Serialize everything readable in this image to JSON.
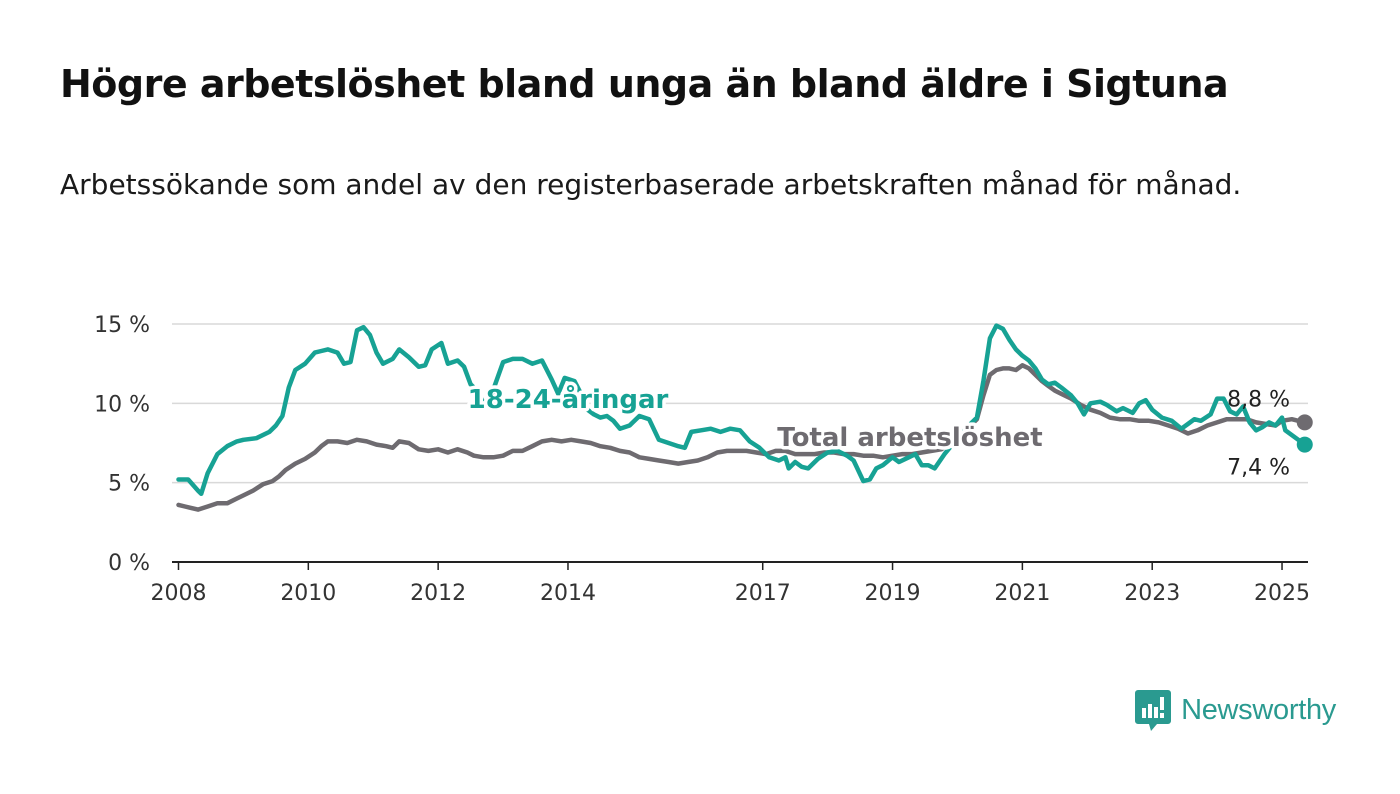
{
  "title": "Högre arbetslöshet bland unga än bland äldre i Sigtuna",
  "subtitle": "Arbetssökande som andel av den registerbaserade arbetskraften månad för månad.",
  "brand": {
    "name": "Newsworthy",
    "icon": "newsworthy-logo-icon",
    "color": "#2a9a90"
  },
  "chart_data": {
    "type": "line",
    "title": "Högre arbetslöshet bland unga än bland äldre i Sigtuna",
    "subtitle": "Arbetssökande som andel av den registerbaserade arbetskraften månad för månad.",
    "xlabel": "",
    "ylabel": "",
    "xlim": [
      2007.9,
      2025.4
    ],
    "ylim": [
      0,
      15
    ],
    "x_ticks": [
      2008,
      2010,
      2012,
      2014,
      2017,
      2019,
      2021,
      2023,
      2025
    ],
    "x_tick_labels": [
      "2008",
      "2010",
      "2012",
      "2014",
      "2017",
      "2019",
      "2021",
      "2023",
      "2025"
    ],
    "y_ticks": [
      0,
      5,
      10,
      15
    ],
    "y_tick_labels": [
      "0 %",
      "5 %",
      "10 %",
      "15 %"
    ],
    "grid": true,
    "legend": "inline labels",
    "series": [
      {
        "name": "18-24-åringar",
        "color": "#17a294",
        "end_label": "7,4 %",
        "points": [
          [
            2008.0,
            5.2
          ],
          [
            2008.15,
            5.2
          ],
          [
            2008.3,
            4.5
          ],
          [
            2008.35,
            4.3
          ],
          [
            2008.45,
            5.6
          ],
          [
            2008.6,
            6.8
          ],
          [
            2008.75,
            7.3
          ],
          [
            2008.9,
            7.6
          ],
          [
            2009.0,
            7.7
          ],
          [
            2009.2,
            7.8
          ],
          [
            2009.4,
            8.2
          ],
          [
            2009.5,
            8.6
          ],
          [
            2009.6,
            9.2
          ],
          [
            2009.7,
            11.0
          ],
          [
            2009.8,
            12.1
          ],
          [
            2009.95,
            12.5
          ],
          [
            2010.1,
            13.2
          ],
          [
            2010.2,
            13.3
          ],
          [
            2010.3,
            13.4
          ],
          [
            2010.45,
            13.2
          ],
          [
            2010.55,
            12.5
          ],
          [
            2010.65,
            12.6
          ],
          [
            2010.75,
            14.6
          ],
          [
            2010.85,
            14.8
          ],
          [
            2010.95,
            14.3
          ],
          [
            2011.05,
            13.2
          ],
          [
            2011.15,
            12.5
          ],
          [
            2011.3,
            12.8
          ],
          [
            2011.4,
            13.4
          ],
          [
            2011.55,
            12.9
          ],
          [
            2011.7,
            12.3
          ],
          [
            2011.8,
            12.4
          ],
          [
            2011.9,
            13.4
          ],
          [
            2012.05,
            13.8
          ],
          [
            2012.15,
            12.5
          ],
          [
            2012.3,
            12.7
          ],
          [
            2012.4,
            12.3
          ],
          [
            2012.5,
            11.2
          ],
          [
            2012.6,
            10.8
          ],
          [
            2012.7,
            10.0
          ],
          [
            2012.8,
            10.3
          ],
          [
            2013.0,
            12.6
          ],
          [
            2013.15,
            12.8
          ],
          [
            2013.3,
            12.8
          ],
          [
            2013.45,
            12.5
          ],
          [
            2013.6,
            12.7
          ],
          [
            2013.75,
            11.5
          ],
          [
            2013.85,
            10.6
          ],
          [
            2013.95,
            11.6
          ],
          [
            2014.1,
            11.4
          ],
          [
            2014.2,
            10.6
          ],
          [
            2014.3,
            9.6
          ],
          [
            2014.4,
            9.3
          ],
          [
            2014.5,
            9.1
          ],
          [
            2014.6,
            9.2
          ],
          [
            2014.7,
            8.9
          ],
          [
            2014.8,
            8.4
          ],
          [
            2014.95,
            8.6
          ],
          [
            2015.1,
            9.2
          ],
          [
            2015.25,
            9.0
          ],
          [
            2015.4,
            7.7
          ],
          [
            2015.55,
            7.5
          ],
          [
            2015.7,
            7.3
          ],
          [
            2015.8,
            7.2
          ],
          [
            2015.9,
            8.2
          ],
          [
            2016.05,
            8.3
          ],
          [
            2016.2,
            8.4
          ],
          [
            2016.35,
            8.2
          ],
          [
            2016.5,
            8.4
          ],
          [
            2016.65,
            8.3
          ],
          [
            2016.8,
            7.6
          ],
          [
            2016.95,
            7.2
          ],
          [
            2017.1,
            6.6
          ],
          [
            2017.25,
            6.4
          ],
          [
            2017.35,
            6.6
          ],
          [
            2017.4,
            5.9
          ],
          [
            2017.5,
            6.3
          ],
          [
            2017.6,
            6.0
          ],
          [
            2017.7,
            5.9
          ],
          [
            2017.85,
            6.5
          ],
          [
            2018.0,
            6.9
          ],
          [
            2018.15,
            7.0
          ],
          [
            2018.3,
            6.7
          ],
          [
            2018.4,
            6.4
          ],
          [
            2018.55,
            5.1
          ],
          [
            2018.65,
            5.2
          ],
          [
            2018.75,
            5.9
          ],
          [
            2018.85,
            6.1
          ],
          [
            2019.0,
            6.6
          ],
          [
            2019.1,
            6.3
          ],
          [
            2019.25,
            6.6
          ],
          [
            2019.35,
            6.8
          ],
          [
            2019.45,
            6.1
          ],
          [
            2019.55,
            6.1
          ],
          [
            2019.65,
            5.9
          ],
          [
            2019.8,
            6.8
          ],
          [
            2019.9,
            7.3
          ],
          [
            2020.0,
            7.9
          ],
          [
            2020.15,
            8.5
          ],
          [
            2020.3,
            9.1
          ],
          [
            2020.4,
            11.4
          ],
          [
            2020.5,
            14.1
          ],
          [
            2020.6,
            14.9
          ],
          [
            2020.7,
            14.7
          ],
          [
            2020.8,
            14.0
          ],
          [
            2020.9,
            13.4
          ],
          [
            2021.0,
            13.0
          ],
          [
            2021.1,
            12.7
          ],
          [
            2021.2,
            12.2
          ],
          [
            2021.3,
            11.5
          ],
          [
            2021.4,
            11.2
          ],
          [
            2021.5,
            11.3
          ],
          [
            2021.6,
            11.0
          ],
          [
            2021.75,
            10.5
          ],
          [
            2021.85,
            10.0
          ],
          [
            2021.95,
            9.3
          ],
          [
            2022.05,
            10.0
          ],
          [
            2022.2,
            10.1
          ],
          [
            2022.3,
            9.9
          ],
          [
            2022.45,
            9.5
          ],
          [
            2022.55,
            9.7
          ],
          [
            2022.7,
            9.4
          ],
          [
            2022.8,
            10.0
          ],
          [
            2022.9,
            10.2
          ],
          [
            2023.0,
            9.6
          ],
          [
            2023.15,
            9.1
          ],
          [
            2023.3,
            8.9
          ],
          [
            2023.45,
            8.4
          ],
          [
            2023.55,
            8.7
          ],
          [
            2023.65,
            9.0
          ],
          [
            2023.75,
            8.9
          ],
          [
            2023.9,
            9.3
          ],
          [
            2024.0,
            10.3
          ],
          [
            2024.1,
            10.3
          ],
          [
            2024.2,
            9.5
          ],
          [
            2024.3,
            9.3
          ],
          [
            2024.4,
            9.8
          ],
          [
            2024.5,
            8.8
          ],
          [
            2024.6,
            8.3
          ],
          [
            2024.7,
            8.5
          ],
          [
            2024.8,
            8.8
          ],
          [
            2024.9,
            8.6
          ],
          [
            2025.0,
            9.1
          ],
          [
            2025.05,
            8.3
          ],
          [
            2025.15,
            8.0
          ],
          [
            2025.25,
            7.7
          ],
          [
            2025.35,
            7.4
          ]
        ]
      },
      {
        "name": "Total arbetslöshet",
        "color": "#6e6b70",
        "end_label": "8,8 %",
        "points": [
          [
            2008.0,
            3.6
          ],
          [
            2008.1,
            3.5
          ],
          [
            2008.2,
            3.4
          ],
          [
            2008.3,
            3.3
          ],
          [
            2008.45,
            3.5
          ],
          [
            2008.6,
            3.7
          ],
          [
            2008.75,
            3.7
          ],
          [
            2008.9,
            4.0
          ],
          [
            2009.0,
            4.2
          ],
          [
            2009.15,
            4.5
          ],
          [
            2009.3,
            4.9
          ],
          [
            2009.45,
            5.1
          ],
          [
            2009.55,
            5.4
          ],
          [
            2009.65,
            5.8
          ],
          [
            2009.8,
            6.2
          ],
          [
            2009.95,
            6.5
          ],
          [
            2010.1,
            6.9
          ],
          [
            2010.2,
            7.3
          ],
          [
            2010.3,
            7.6
          ],
          [
            2010.45,
            7.6
          ],
          [
            2010.6,
            7.5
          ],
          [
            2010.75,
            7.7
          ],
          [
            2010.9,
            7.6
          ],
          [
            2011.05,
            7.4
          ],
          [
            2011.2,
            7.3
          ],
          [
            2011.3,
            7.2
          ],
          [
            2011.4,
            7.6
          ],
          [
            2011.55,
            7.5
          ],
          [
            2011.7,
            7.1
          ],
          [
            2011.85,
            7.0
          ],
          [
            2012.0,
            7.1
          ],
          [
            2012.15,
            6.9
          ],
          [
            2012.3,
            7.1
          ],
          [
            2012.45,
            6.9
          ],
          [
            2012.55,
            6.7
          ],
          [
            2012.7,
            6.6
          ],
          [
            2012.85,
            6.6
          ],
          [
            2013.0,
            6.7
          ],
          [
            2013.15,
            7.0
          ],
          [
            2013.3,
            7.0
          ],
          [
            2013.45,
            7.3
          ],
          [
            2013.6,
            7.6
          ],
          [
            2013.75,
            7.7
          ],
          [
            2013.9,
            7.6
          ],
          [
            2014.05,
            7.7
          ],
          [
            2014.2,
            7.6
          ],
          [
            2014.35,
            7.5
          ],
          [
            2014.5,
            7.3
          ],
          [
            2014.65,
            7.2
          ],
          [
            2014.8,
            7.0
          ],
          [
            2014.95,
            6.9
          ],
          [
            2015.1,
            6.6
          ],
          [
            2015.25,
            6.5
          ],
          [
            2015.4,
            6.4
          ],
          [
            2015.55,
            6.3
          ],
          [
            2015.7,
            6.2
          ],
          [
            2015.85,
            6.3
          ],
          [
            2016.0,
            6.4
          ],
          [
            2016.15,
            6.6
          ],
          [
            2016.3,
            6.9
          ],
          [
            2016.45,
            7.0
          ],
          [
            2016.6,
            7.0
          ],
          [
            2016.75,
            7.0
          ],
          [
            2016.9,
            6.9
          ],
          [
            2017.05,
            6.8
          ],
          [
            2017.2,
            7.0
          ],
          [
            2017.35,
            7.0
          ],
          [
            2017.5,
            6.8
          ],
          [
            2017.65,
            6.8
          ],
          [
            2017.8,
            6.8
          ],
          [
            2017.95,
            6.9
          ],
          [
            2018.1,
            6.9
          ],
          [
            2018.25,
            6.8
          ],
          [
            2018.4,
            6.8
          ],
          [
            2018.55,
            6.7
          ],
          [
            2018.7,
            6.7
          ],
          [
            2018.85,
            6.6
          ],
          [
            2019.0,
            6.7
          ],
          [
            2019.15,
            6.8
          ],
          [
            2019.3,
            6.8
          ],
          [
            2019.45,
            6.9
          ],
          [
            2019.6,
            7.0
          ],
          [
            2019.75,
            7.1
          ],
          [
            2019.9,
            7.5
          ],
          [
            2020.0,
            7.8
          ],
          [
            2020.1,
            8.3
          ],
          [
            2020.2,
            8.6
          ],
          [
            2020.3,
            9.0
          ],
          [
            2020.4,
            10.5
          ],
          [
            2020.5,
            11.8
          ],
          [
            2020.6,
            12.1
          ],
          [
            2020.7,
            12.2
          ],
          [
            2020.8,
            12.2
          ],
          [
            2020.9,
            12.1
          ],
          [
            2021.0,
            12.4
          ],
          [
            2021.1,
            12.2
          ],
          [
            2021.2,
            11.8
          ],
          [
            2021.3,
            11.4
          ],
          [
            2021.4,
            11.1
          ],
          [
            2021.5,
            10.8
          ],
          [
            2021.6,
            10.6
          ],
          [
            2021.75,
            10.3
          ],
          [
            2021.9,
            9.9
          ],
          [
            2022.05,
            9.6
          ],
          [
            2022.2,
            9.4
          ],
          [
            2022.35,
            9.1
          ],
          [
            2022.5,
            9.0
          ],
          [
            2022.65,
            9.0
          ],
          [
            2022.8,
            8.9
          ],
          [
            2022.95,
            8.9
          ],
          [
            2023.1,
            8.8
          ],
          [
            2023.25,
            8.6
          ],
          [
            2023.4,
            8.4
          ],
          [
            2023.55,
            8.1
          ],
          [
            2023.7,
            8.3
          ],
          [
            2023.85,
            8.6
          ],
          [
            2024.0,
            8.8
          ],
          [
            2024.15,
            9.0
          ],
          [
            2024.3,
            9.0
          ],
          [
            2024.45,
            9.0
          ],
          [
            2024.6,
            8.8
          ],
          [
            2024.75,
            8.7
          ],
          [
            2024.9,
            8.6
          ],
          [
            2025.0,
            8.9
          ],
          [
            2025.15,
            9.0
          ],
          [
            2025.25,
            8.9
          ],
          [
            2025.35,
            8.8
          ]
        ]
      }
    ]
  }
}
